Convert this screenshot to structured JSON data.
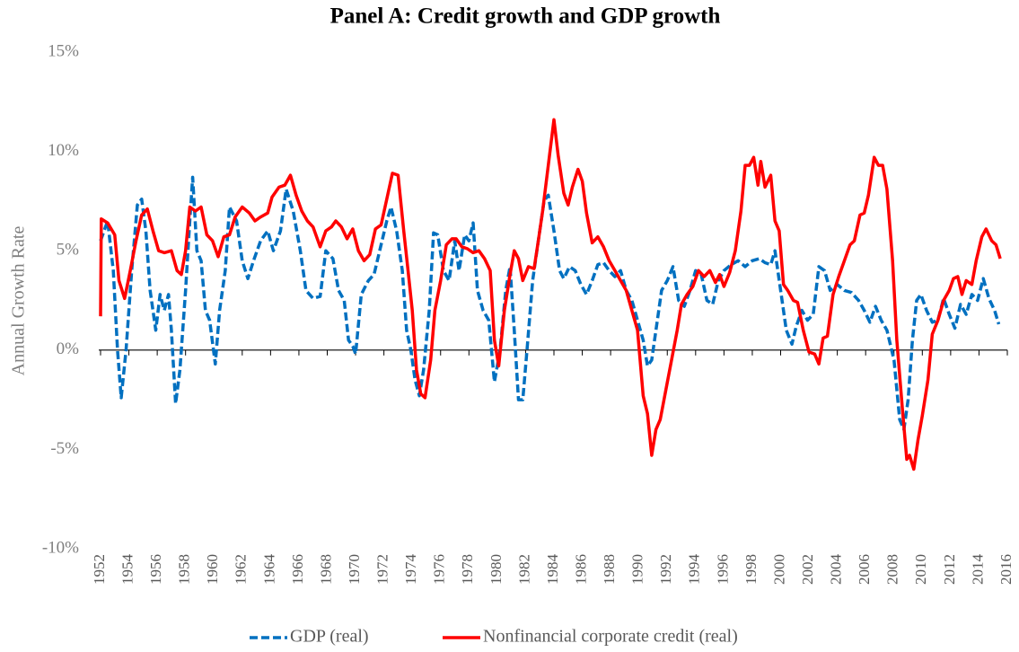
{
  "chart_data": {
    "type": "line",
    "title": "Panel A: Credit growth and GDP growth",
    "y_label": "Annual Growth Rate",
    "xlim": [
      1952,
      2016
    ],
    "xticks": [
      1952,
      1954,
      1956,
      1958,
      1960,
      1962,
      1964,
      1966,
      1968,
      1970,
      1972,
      1974,
      1976,
      1978,
      1980,
      1982,
      1984,
      1986,
      1988,
      1990,
      1992,
      1994,
      1996,
      1998,
      2000,
      2002,
      2004,
      2006,
      2008,
      2010,
      2012,
      2014,
      2016
    ],
    "ylim": [
      -10,
      15
    ],
    "yticks": [
      {
        "value": -10,
        "label": "-10%"
      },
      {
        "value": -5,
        "label": "-5%"
      },
      {
        "value": 0,
        "label": "0%"
      },
      {
        "value": 5,
        "label": "5%"
      },
      {
        "value": 10,
        "label": "10%"
      },
      {
        "value": 15,
        "label": "15%"
      }
    ],
    "grid": false,
    "legend": "bottom",
    "series": [
      {
        "name": "GDP (real)",
        "color": "#0070c0",
        "dashed": true,
        "x": [
          1952.0,
          1952.5,
          1952.9,
          1953.2,
          1953.46,
          1953.8,
          1954.2,
          1954.6,
          1954.9,
          1955.2,
          1955.5,
          1955.9,
          1956.2,
          1956.5,
          1956.8,
          1957.0,
          1957.3,
          1957.6,
          1958.0,
          1958.3,
          1958.5,
          1958.8,
          1959.1,
          1959.4,
          1959.7,
          1960.1,
          1960.4,
          1960.8,
          1961.1,
          1961.6,
          1962.0,
          1962.4,
          1962.8,
          1963.3,
          1963.8,
          1964.2,
          1964.7,
          1965.1,
          1965.6,
          1966.1,
          1966.5,
          1967.0,
          1967.5,
          1967.9,
          1968.4,
          1968.8,
          1969.2,
          1969.5,
          1969.8,
          1970.0,
          1970.4,
          1970.9,
          1971.3,
          1971.7,
          1972.2,
          1972.5,
          1972.9,
          1973.3,
          1973.6,
          1973.9,
          1974.2,
          1974.5,
          1974.8,
          1975.2,
          1975.5,
          1975.8,
          1976.2,
          1976.6,
          1977.0,
          1977.3,
          1977.7,
          1978.0,
          1978.3,
          1978.6,
          1979.0,
          1979.4,
          1979.8,
          1980.2,
          1980.6,
          1980.9,
          1981.2,
          1981.5,
          1981.8,
          1982.1,
          1982.5,
          1982.9,
          1983.3,
          1983.6,
          1984.0,
          1984.4,
          1984.7,
          1985.1,
          1985.5,
          1985.9,
          1986.3,
          1986.7,
          1987.1,
          1987.5,
          1987.9,
          1988.3,
          1988.7,
          1989.1,
          1989.5,
          1989.9,
          1990.3,
          1990.6,
          1990.9,
          1991.3,
          1991.6,
          1992.0,
          1992.4,
          1992.8,
          1993.2,
          1993.6,
          1994.0,
          1994.4,
          1994.8,
          1995.2,
          1995.6,
          1996.0,
          1996.5,
          1997.0,
          1997.5,
          1998.0,
          1998.5,
          1998.9,
          1999.3,
          1999.6,
          2000.0,
          2000.4,
          2000.8,
          2001.1,
          2001.5,
          2001.9,
          2002.3,
          2002.7,
          2003.1,
          2003.5,
          2004.0,
          2004.5,
          2005.0,
          2005.5,
          2005.9,
          2006.3,
          2006.7,
          2007.1,
          2007.5,
          2008.0,
          2008.4,
          2008.7,
          2009.0,
          2009.3,
          2009.6,
          2009.9,
          2010.3,
          2010.7,
          2011.1,
          2011.5,
          2011.9,
          2012.3,
          2012.7,
          2013.1,
          2013.5,
          2013.9,
          2014.3,
          2014.7,
          2015.1,
          2015.4
        ],
        "values": [
          5.5,
          6.5,
          4,
          0,
          -2.4,
          0,
          4,
          7.3,
          7.6,
          6,
          3,
          1,
          2.8,
          2,
          2.8,
          1,
          -2.7,
          -1,
          3,
          6.5,
          8.7,
          5,
          4.5,
          2,
          1.5,
          -0.7,
          2,
          4,
          7.2,
          6.5,
          4.5,
          3.6,
          4.5,
          5.5,
          6,
          5,
          6,
          8.1,
          7,
          5,
          3,
          2.6,
          2.7,
          5,
          4.6,
          3,
          2.5,
          0.5,
          0.2,
          -0.2,
          2.8,
          3.5,
          3.8,
          5,
          6.5,
          7.2,
          6,
          4,
          1,
          0,
          -1.5,
          -2.3,
          -1,
          2,
          5.9,
          5.8,
          4,
          3.5,
          5.5,
          4,
          5.8,
          5.5,
          6.4,
          3,
          2,
          1.5,
          -1.6,
          0,
          3,
          4.2,
          1,
          -2.5,
          -2.5,
          0,
          3.5,
          5.5,
          7.5,
          7.8,
          6,
          4,
          3.6,
          4.2,
          4,
          3.3,
          2.8,
          3.5,
          4.3,
          4.4,
          4,
          3.7,
          4,
          3,
          2.5,
          1.5,
          0.5,
          -0.8,
          -0.5,
          1.5,
          3,
          3.5,
          4.2,
          2.5,
          2.2,
          3,
          4,
          3.8,
          2.5,
          2.3,
          3.5,
          4,
          4.3,
          4.5,
          4.2,
          4.5,
          4.6,
          4.4,
          4.3,
          5,
          3,
          1,
          0.3,
          1.2,
          2,
          1.5,
          1.8,
          4.2,
          4,
          3,
          3.3,
          3,
          2.9,
          2.5,
          2,
          1.4,
          2.2,
          1.5,
          1,
          -0.5,
          -3.5,
          -4,
          -2.5,
          0.5,
          2.5,
          2.8,
          2,
          1.4,
          1.5,
          2.6,
          1.8,
          1.1,
          2.3,
          1.8,
          2.8,
          2.5,
          3.6,
          2.6,
          2,
          1.3
        ]
      },
      {
        "name": "Nonfinancial corporate credit (real)",
        "color": "#ff0000",
        "dashed": false,
        "x": [
          1952.0,
          1952.05,
          1952.5,
          1953.0,
          1953.3,
          1953.7,
          1954.1,
          1954.5,
          1954.9,
          1955.3,
          1955.7,
          1956.1,
          1956.5,
          1957.0,
          1957.4,
          1957.7,
          1958.0,
          1958.3,
          1958.7,
          1959.1,
          1959.5,
          1959.9,
          1960.3,
          1960.7,
          1961.1,
          1961.5,
          1962.0,
          1962.5,
          1962.9,
          1963.3,
          1963.8,
          1964.1,
          1964.6,
          1965.0,
          1965.4,
          1965.8,
          1966.2,
          1966.6,
          1967.0,
          1967.5,
          1967.9,
          1968.3,
          1968.6,
          1969.0,
          1969.4,
          1969.8,
          1970.2,
          1970.6,
          1971.0,
          1971.4,
          1971.8,
          1972.2,
          1972.6,
          1973.0,
          1973.4,
          1973.7,
          1974.0,
          1974.3,
          1974.6,
          1974.9,
          1975.3,
          1975.6,
          1976.0,
          1976.4,
          1976.8,
          1977.1,
          1977.5,
          1977.9,
          1978.3,
          1978.7,
          1979.1,
          1979.5,
          1979.8,
          1980.1,
          1980.5,
          1980.9,
          1981.2,
          1981.5,
          1981.8,
          1982.2,
          1982.6,
          1982.9,
          1983.2,
          1983.6,
          1984.0,
          1984.3,
          1984.7,
          1985.0,
          1985.3,
          1985.7,
          1986.0,
          1986.3,
          1986.7,
          1987.1,
          1987.5,
          1987.9,
          1988.3,
          1988.7,
          1989.1,
          1989.5,
          1989.9,
          1990.3,
          1990.6,
          1990.9,
          1991.2,
          1991.5,
          1991.9,
          1992.3,
          1992.7,
          1993.0,
          1993.4,
          1993.8,
          1994.2,
          1994.6,
          1995.0,
          1995.4,
          1995.7,
          1996.0,
          1996.4,
          1996.8,
          1997.2,
          1997.5,
          1997.8,
          1998.1,
          1998.4,
          1998.6,
          1998.9,
          1999.3,
          1999.6,
          1999.9,
          2000.2,
          2000.5,
          2000.9,
          2001.2,
          2001.6,
          2002.0,
          2002.4,
          2002.7,
          2003.0,
          2003.3,
          2003.7,
          2004.1,
          2004.5,
          2004.9,
          2005.2,
          2005.6,
          2005.9,
          2006.2,
          2006.6,
          2006.9,
          2007.2,
          2007.5,
          2007.9,
          2008.2,
          2008.6,
          2008.9,
          2009.1,
          2009.4,
          2009.7,
          2010.0,
          2010.4,
          2010.7,
          2011.1,
          2011.5,
          2011.9,
          2012.2,
          2012.5,
          2012.8,
          2013.1,
          2013.5,
          2013.8,
          2014.2,
          2014.5,
          2014.9,
          2015.2,
          2015.5
        ],
        "values": [
          1.7,
          6.6,
          6.4,
          5.8,
          3.5,
          2.6,
          4,
          5.5,
          6.8,
          7.1,
          6,
          5,
          4.9,
          5,
          4,
          3.8,
          5,
          7.2,
          7,
          7.2,
          5.8,
          5.5,
          4.7,
          5.7,
          5.8,
          6.7,
          7.2,
          6.9,
          6.5,
          6.7,
          6.9,
          7.7,
          8.2,
          8.3,
          8.8,
          7.8,
          7,
          6.5,
          6.2,
          5.2,
          6,
          6.2,
          6.5,
          6.2,
          5.6,
          6.1,
          5,
          4.5,
          4.8,
          6.1,
          6.3,
          7.6,
          8.9,
          8.8,
          6,
          4,
          2,
          -1,
          -2.2,
          -2.4,
          -0.5,
          2,
          3.5,
          5.3,
          5.6,
          5.6,
          5.2,
          5.1,
          4.9,
          5,
          4.6,
          4,
          0.5,
          -0.8,
          2,
          3.8,
          5,
          4.6,
          3.5,
          4.2,
          4.1,
          5.5,
          7,
          9.3,
          11.6,
          9.8,
          7.9,
          7.3,
          8.2,
          9.1,
          8.5,
          6.9,
          5.4,
          5.7,
          5.2,
          4.5,
          4,
          3.5,
          3,
          2,
          1,
          -2.3,
          -3.2,
          -5.3,
          -4,
          -3.5,
          -2,
          -0.5,
          1,
          2.3,
          2.8,
          3.2,
          4,
          3.7,
          4,
          3.4,
          3.8,
          3.2,
          3.9,
          5,
          7,
          9.3,
          9.3,
          9.7,
          8.3,
          9.5,
          8.2,
          8.8,
          6.5,
          6,
          3.3,
          3,
          2.5,
          2.4,
          1,
          -0.1,
          -0.2,
          -0.7,
          0.6,
          0.7,
          2.8,
          3.7,
          4.5,
          5.3,
          5.5,
          6.8,
          6.9,
          7.8,
          9.7,
          9.3,
          9.3,
          8.1,
          4.5,
          0.5,
          -3,
          -5.5,
          -5.3,
          -6,
          -4.5,
          -3.3,
          -1.5,
          0.8,
          1.5,
          2.5,
          3,
          3.6,
          3.7,
          2.8,
          3.5,
          3.3,
          4.5,
          5.7,
          6.1,
          5.5,
          5.3,
          4.6
        ]
      }
    ]
  }
}
